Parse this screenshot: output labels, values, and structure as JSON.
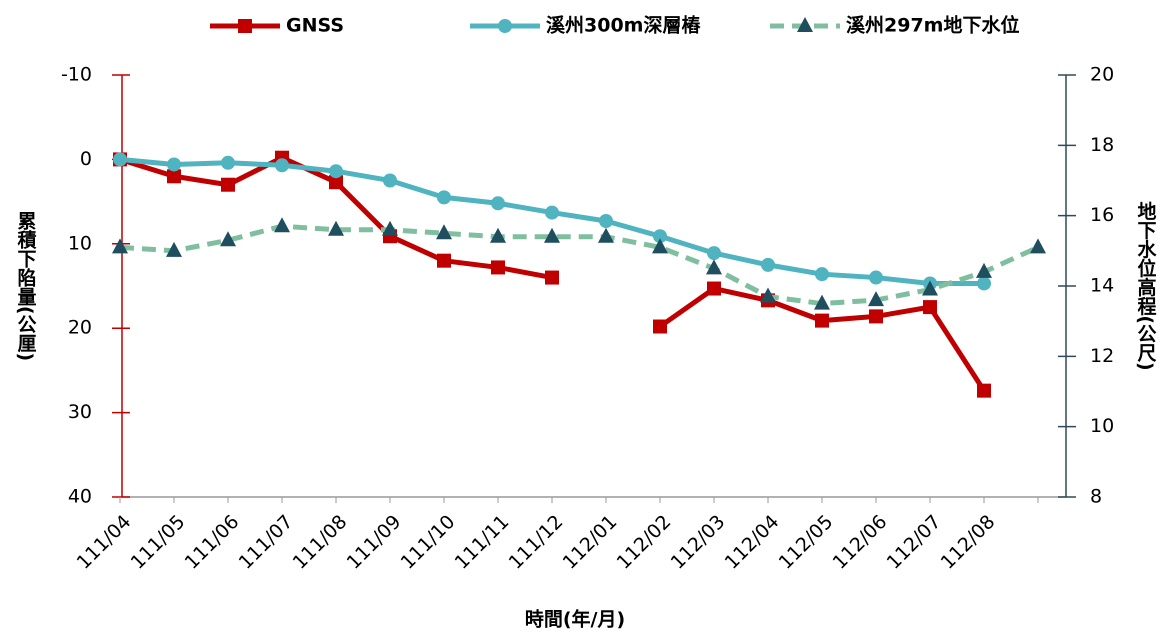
{
  "chart_data": {
    "type": "line",
    "x_label": "時間(年/月)",
    "y_label": "累積下陷量(公厘)",
    "y2_label": "地下水位高程(公尺)",
    "categories": [
      "111/04",
      "111/05",
      "111/06",
      "111/07",
      "111/08",
      "111/09",
      "111/10",
      "111/11",
      "111/12",
      "112/01",
      "112/02",
      "112/03",
      "112/04",
      "112/05",
      "112/06",
      "112/07",
      "112/08",
      null
    ],
    "ylim": [
      -10,
      40
    ],
    "y_inverted": true,
    "yticks": [
      -10,
      0,
      10,
      20,
      30,
      40
    ],
    "y_color": "#c00000",
    "y2lim": [
      8,
      20
    ],
    "y2ticks": [
      8,
      10,
      12,
      14,
      16,
      18,
      20
    ],
    "y2_color": "#2e4a5a",
    "legend": "top",
    "series": [
      {
        "name": "GNSS",
        "color": "#c00000",
        "marker": "square",
        "dashed": false,
        "axis": "y",
        "values": [
          0,
          2.0,
          3.0,
          -0.2,
          2.7,
          9.1,
          12.0,
          12.8,
          14.0,
          null,
          19.8,
          15.3,
          16.7,
          19.1,
          18.6,
          17.5,
          27.4,
          null
        ]
      },
      {
        "name": "溪州300m深層樁",
        "color": "#4fb3c0",
        "marker": "circle",
        "dashed": false,
        "axis": "y",
        "values": [
          0,
          0.6,
          0.4,
          0.7,
          1.4,
          2.5,
          4.5,
          5.2,
          6.3,
          7.3,
          9.1,
          11.1,
          12.5,
          13.6,
          14.0,
          14.7,
          14.7,
          null
        ]
      },
      {
        "name": "溪州297m地下水位",
        "color": "#7fbfa0",
        "marker_color": "#1f4e5f",
        "marker": "triangle",
        "dashed": true,
        "axis": "y2",
        "values": [
          15.1,
          15.0,
          15.3,
          15.7,
          15.6,
          15.6,
          15.5,
          15.4,
          15.4,
          15.4,
          15.1,
          14.5,
          13.7,
          13.5,
          13.6,
          13.9,
          14.4,
          15.1
        ]
      }
    ]
  }
}
